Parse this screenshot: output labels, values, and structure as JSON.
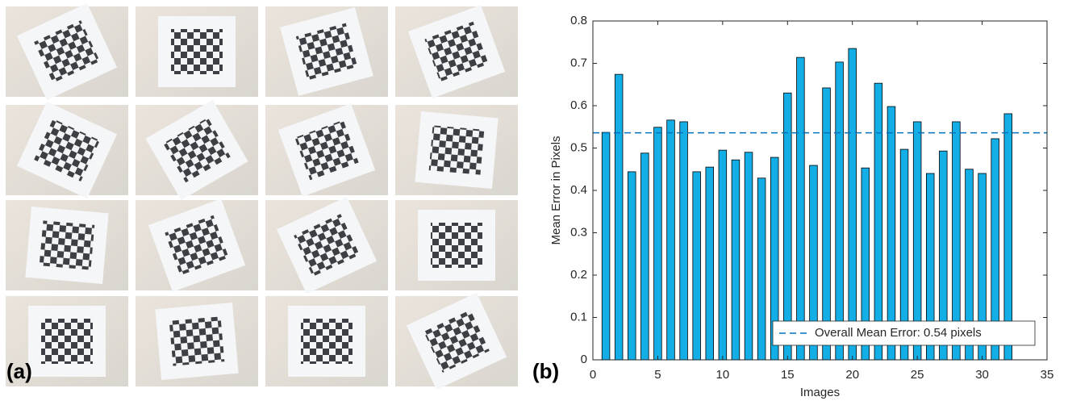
{
  "panel_a_label": "(a)",
  "chart_data": {
    "type": "bar",
    "panel_label": "(b)",
    "x_label": "Images",
    "y_label": "Mean Error in Pixels",
    "x": [
      1,
      2,
      3,
      4,
      5,
      6,
      7,
      8,
      9,
      10,
      11,
      12,
      13,
      14,
      15,
      16,
      17,
      18,
      19,
      20,
      21,
      22,
      23,
      24,
      25,
      26,
      27,
      28,
      29,
      30,
      31,
      32
    ],
    "values": [
      0.537,
      0.674,
      0.444,
      0.488,
      0.549,
      0.566,
      0.562,
      0.444,
      0.455,
      0.495,
      0.472,
      0.49,
      0.429,
      0.478,
      0.63,
      0.714,
      0.459,
      0.642,
      0.703,
      0.735,
      0.453,
      0.653,
      0.598,
      0.497,
      0.562,
      0.44,
      0.493,
      0.562,
      0.45,
      0.44,
      0.522,
      0.581
    ],
    "color": "#13aee6",
    "xlim": [
      0,
      35
    ],
    "xticks": [
      0,
      5,
      10,
      15,
      20,
      25,
      30,
      35
    ],
    "ylim": [
      0,
      0.8
    ],
    "yticks": [
      0,
      0.1,
      0.2,
      0.3,
      0.4,
      0.5,
      0.6,
      0.7,
      0.8
    ],
    "reference_line": {
      "name": "Overall Mean Error: 0.54 pixels",
      "value": 0.536,
      "color": "#0072bd"
    },
    "legend": "lower right"
  }
}
